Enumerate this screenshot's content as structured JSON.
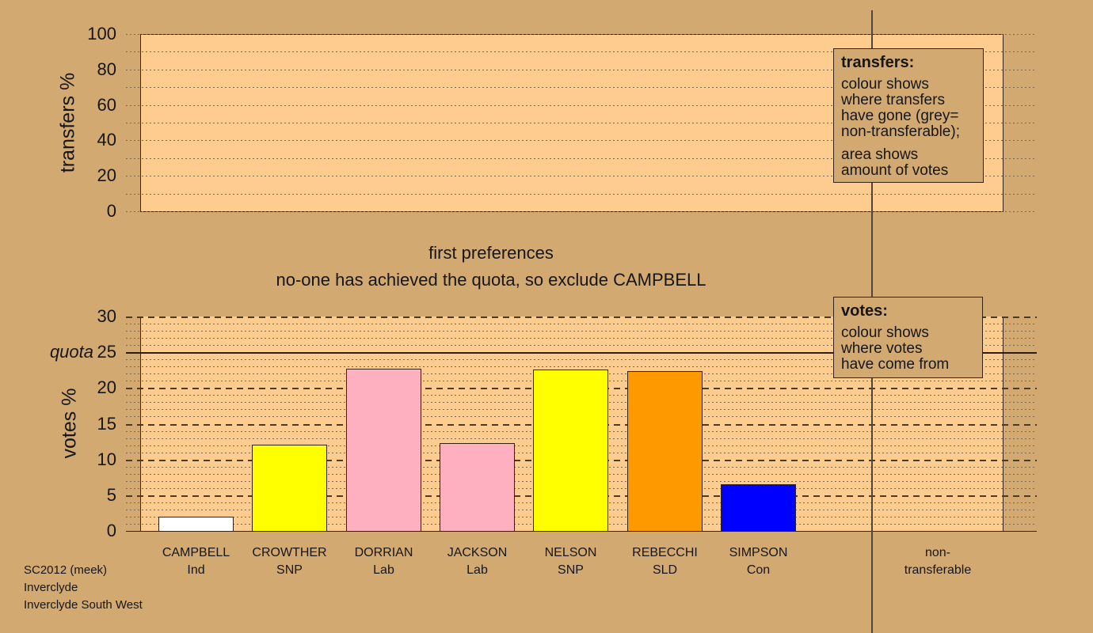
{
  "colors": {
    "background": "#d2a970",
    "plot_fill": "#ffcc90",
    "axis": "#332211",
    "grid_dot": "#7d6a4e",
    "grid_dash": "#4a3a28",
    "quota_line": "#2a1c10"
  },
  "titles": {
    "stage_title": "first preferences",
    "stage_subtitle": "no-one has achieved the quota, so exclude CAMPBELL"
  },
  "legend_transfers": {
    "title": "transfers:",
    "para1_lines": [
      "colour shows",
      "where transfers",
      "have gone (grey=",
      "non-transferable);"
    ],
    "para2_lines": [
      "area shows",
      "amount of votes"
    ]
  },
  "legend_votes": {
    "title": "votes:",
    "para1_lines": [
      "colour shows",
      "where votes",
      "have come from"
    ]
  },
  "footer": {
    "lines": [
      "SC2012 (meek)",
      "Inverclyde",
      "Inverclyde South West"
    ]
  },
  "chart_data": [
    {
      "type": "bar",
      "panel": "transfers",
      "ylabel": "transfers %",
      "ylim": [
        0,
        100
      ],
      "yticks": [
        0,
        20,
        40,
        60,
        80,
        100
      ],
      "grid_step": 10,
      "grid": "dotted",
      "legend_position": "right",
      "series": []
    },
    {
      "type": "bar",
      "panel": "votes",
      "ylabel": "votes %",
      "ylim": [
        0,
        30
      ],
      "yticks": [
        0,
        5,
        10,
        15,
        20,
        25,
        30
      ],
      "grid_minor_step": 1,
      "grid_major_step": 5,
      "quota": {
        "label": "quota",
        "value": 25
      },
      "categories": [
        {
          "name": "CAMPBELL",
          "party": "Ind",
          "value": 2.0,
          "color": "#ffffff"
        },
        {
          "name": "CROWTHER",
          "party": "SNP",
          "value": 12.1,
          "color": "#ffff00"
        },
        {
          "name": "DORRIAN",
          "party": "Lab",
          "value": 22.7,
          "color": "#ffb0c0"
        },
        {
          "name": "JACKSON",
          "party": "Lab",
          "value": 12.3,
          "color": "#ffb0c0"
        },
        {
          "name": "NELSON",
          "party": "SNP",
          "value": 22.6,
          "color": "#ffff00"
        },
        {
          "name": "REBECCHI",
          "party": "SLD",
          "value": 22.4,
          "color": "#ff9900"
        },
        {
          "name": "SIMPSON",
          "party": "Con",
          "value": 6.5,
          "color": "#0000ff"
        }
      ],
      "extra_column": {
        "label_lines": [
          "non-",
          "transferable"
        ]
      }
    }
  ]
}
